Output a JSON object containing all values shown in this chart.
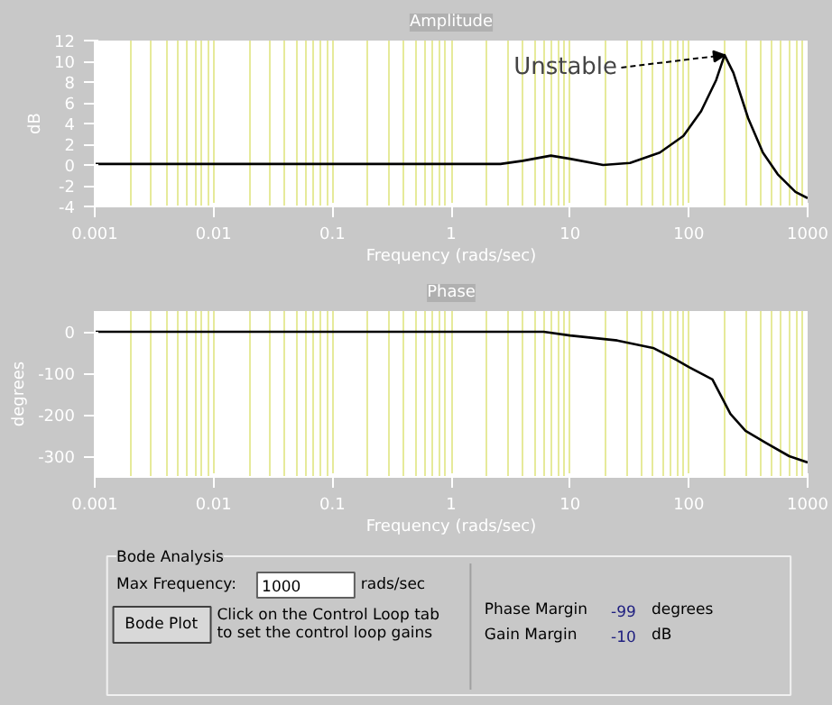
{
  "chart_data": [
    {
      "type": "line",
      "title": "Amplitude",
      "xlabel": "Frequency (rads/sec)",
      "ylabel": "dB",
      "log": "x",
      "grid": "x",
      "xlim": [
        0.001,
        1000
      ],
      "xticks": [
        0.001,
        0.01,
        0.1,
        1,
        10,
        100,
        1000
      ],
      "ylim": [
        -4,
        12
      ],
      "yticks": [
        -4,
        -2,
        0,
        2,
        4,
        6,
        8,
        10,
        12
      ],
      "x": [
        0.001,
        0.01,
        0.1,
        1,
        2.6,
        4,
        6.9,
        10,
        19,
        32,
        57,
        90,
        127,
        170,
        200,
        237,
        316,
        420,
        560,
        790,
        1000
      ],
      "series": [
        {
          "color": "#000000",
          "values": [
            0.1,
            0.1,
            0.1,
            0.1,
            0.1,
            0.4,
            0.9,
            0.6,
            0,
            0.2,
            1.2,
            2.8,
            5.2,
            8.2,
            10.6,
            8.9,
            4.5,
            1.2,
            -0.9,
            -2.6,
            -3.2
          ]
        }
      ],
      "annotations": [
        {
          "text": "Unstable",
          "x": 200,
          "y": 10.6
        }
      ]
    },
    {
      "type": "line",
      "title": "Phase",
      "xlabel": "Frequency (rads/sec)",
      "ylabel": "degrees",
      "log": "x",
      "grid": "x",
      "xlim": [
        0.001,
        1000
      ],
      "xticks": [
        0.001,
        0.01,
        0.1,
        1,
        10,
        100,
        1000
      ],
      "ylim": [
        -350,
        50
      ],
      "yticks": [
        -300,
        -200,
        -100,
        0
      ],
      "x": [
        0.001,
        0.01,
        0.1,
        1,
        6,
        10,
        25,
        50,
        79,
        100,
        158,
        224,
        300,
        447,
        700,
        1000
      ],
      "series": [
        {
          "color": "#000000",
          "values": [
            0,
            0,
            0,
            0,
            0,
            -9,
            -21,
            -39,
            -68,
            -85,
            -115,
            -198,
            -239,
            -268,
            -300,
            -315
          ]
        }
      ]
    },
    {
      "type": "other",
      "title": "Bode Analysis",
      "annotations": [
        "Max Frequency:",
        "1000",
        "rads/sec",
        "Bode Plot",
        "Click on the Control Loop tab",
        "to set the control loop gains",
        "Phase Margin",
        "-99",
        "degrees",
        "Gain Margin",
        "-10",
        "dB"
      ]
    }
  ]
}
